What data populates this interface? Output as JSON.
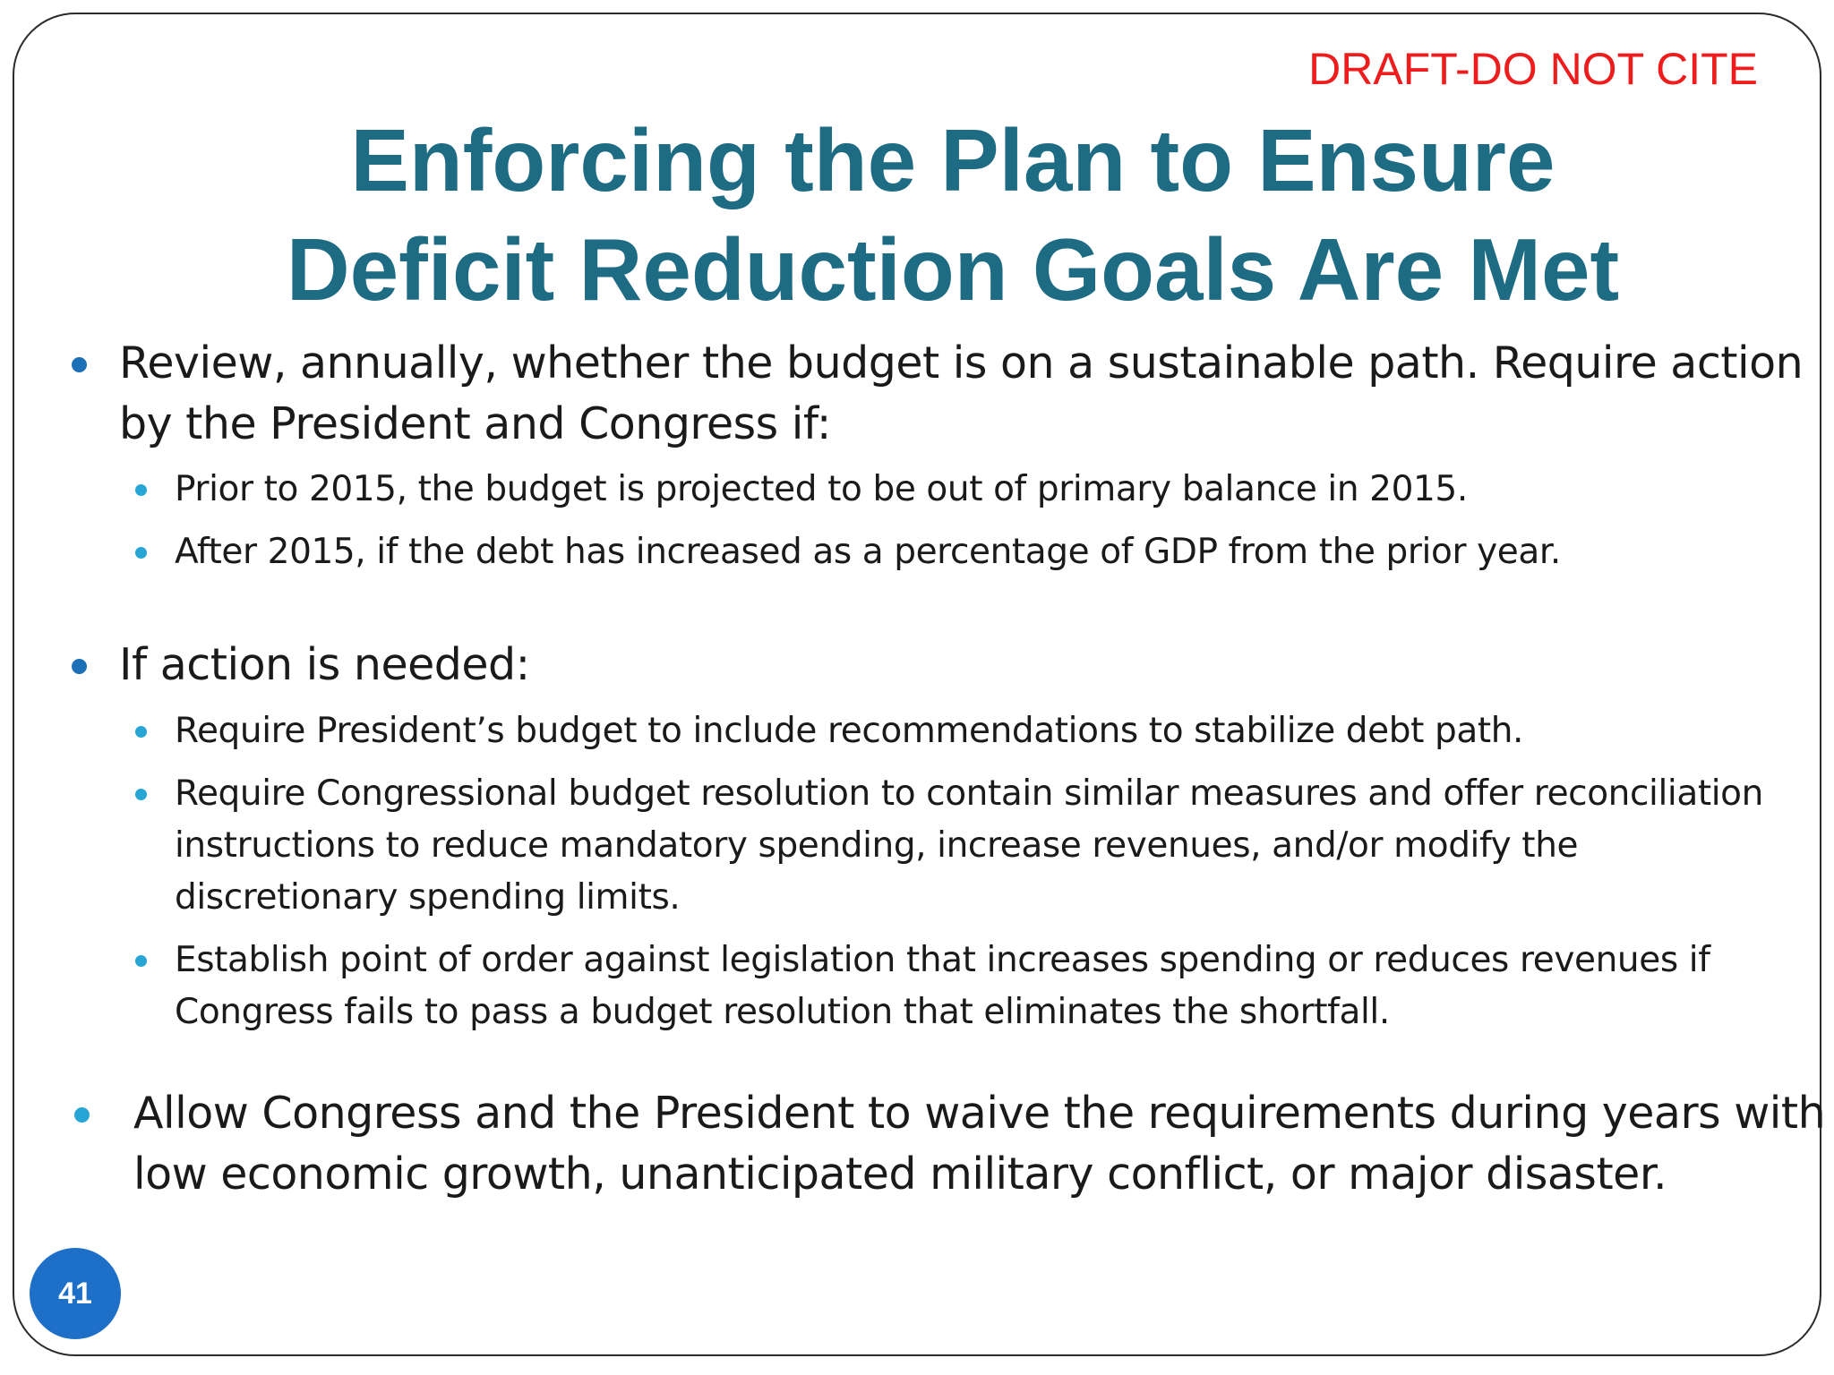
{
  "slide": {
    "draft_label": "DRAFT-DO NOT CITE",
    "title_line1": "Enforcing the Plan to Ensure",
    "title_line2": "Deficit Reduction Goals Are Met",
    "page_number": "41",
    "colors": {
      "title": "#1e6b84",
      "draft": "#ee1c1c",
      "bullet_level1": "#1d6fb8",
      "bullet_level2": "#27a6d6",
      "page_badge": "#1d6fc8"
    }
  },
  "bullets": [
    {
      "text": "Review, annually, whether the budget is on a sustainable path. Require action by the President and Congress if:",
      "sub": [
        "Prior to 2015, the budget is projected to be out of primary balance in 2015.",
        "After 2015, if the debt has increased as a percentage of GDP from the prior year."
      ]
    },
    {
      "text": "If action is needed:",
      "sub": [
        "Require President’s budget to include recommendations to stabilize debt path.",
        "Require Congressional budget resolution to contain similar measures and offer reconciliation instructions to reduce mandatory spending, increase revenues, and/or modify the discretionary spending limits.",
        "Establish point of order against legislation that increases spending or reduces revenues if Congress fails to pass a budget resolution that eliminates the shortfall."
      ]
    },
    {
      "text": "Allow Congress and the President to waive the requirements during years with low economic growth, unanticipated military conflict, or major disaster.",
      "sub": []
    }
  ]
}
